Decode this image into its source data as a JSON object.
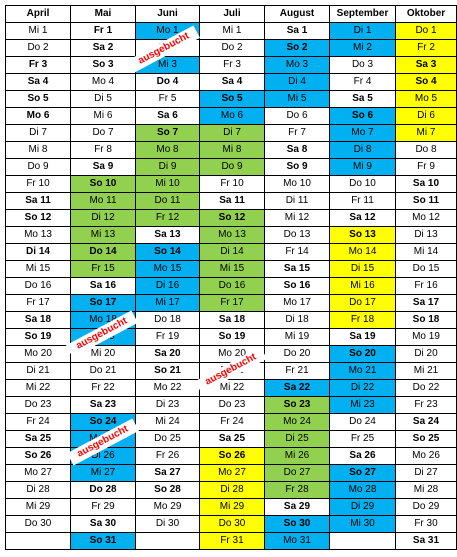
{
  "months": [
    "April",
    "Mai",
    "Juni",
    "Juli",
    "August",
    "September",
    "Oktober"
  ],
  "stamp_text": "ausgebucht",
  "colors": {
    "blue": "#00b0f0",
    "green": "#92d050",
    "yellow": "#ffff00"
  },
  "rows": [
    [
      [
        "Mi 1",
        "",
        0
      ],
      [
        "Fr 1",
        "",
        1
      ],
      [
        "Mo 1",
        "blue",
        0
      ],
      [
        "Mi 1",
        "",
        0
      ],
      [
        "Sa 1",
        "",
        1
      ],
      [
        "Di 1",
        "blue",
        0
      ],
      [
        "Do 1",
        "yellow",
        0
      ]
    ],
    [
      [
        "Do 2",
        "",
        0
      ],
      [
        "Sa 2",
        "",
        1
      ],
      [
        "Di 2",
        "",
        0
      ],
      [
        "Do 2",
        "",
        0
      ],
      [
        "So 2",
        "blue",
        1
      ],
      [
        "Mi 2",
        "blue",
        0
      ],
      [
        "Fr 2",
        "yellow",
        0
      ]
    ],
    [
      [
        "Fr 3",
        "",
        1
      ],
      [
        "So 3",
        "",
        1
      ],
      [
        "Mi 3",
        "blue",
        0
      ],
      [
        "Fr 3",
        "",
        0
      ],
      [
        "Mo 3",
        "blue",
        0
      ],
      [
        "Do 3",
        "",
        0
      ],
      [
        "Sa 3",
        "yellow",
        1
      ]
    ],
    [
      [
        "Sa 4",
        "",
        1
      ],
      [
        "Mo 4",
        "",
        0
      ],
      [
        "Do 4",
        "",
        1
      ],
      [
        "Sa 4",
        "",
        1
      ],
      [
        "Di 4",
        "blue",
        0
      ],
      [
        "Fr 4",
        "",
        0
      ],
      [
        "So 4",
        "yellow",
        1
      ]
    ],
    [
      [
        "So 5",
        "",
        1
      ],
      [
        "Di 5",
        "",
        0
      ],
      [
        "Fr 5",
        "",
        0
      ],
      [
        "So 5",
        "blue",
        1
      ],
      [
        "Mi 5",
        "blue",
        0
      ],
      [
        "Sa 5",
        "",
        1
      ],
      [
        "Mo 5",
        "yellow",
        0
      ]
    ],
    [
      [
        "Mo 6",
        "",
        1
      ],
      [
        "Mi 6",
        "",
        0
      ],
      [
        "Sa 6",
        "",
        1
      ],
      [
        "Mo 6",
        "blue",
        0
      ],
      [
        "Do 6",
        "",
        0
      ],
      [
        "So 6",
        "blue",
        1
      ],
      [
        "Di 6",
        "yellow",
        0
      ]
    ],
    [
      [
        "Di 7",
        "",
        0
      ],
      [
        "Do 7",
        "",
        0
      ],
      [
        "So 7",
        "green",
        1
      ],
      [
        "Di 7",
        "green",
        0
      ],
      [
        "Fr 7",
        "",
        0
      ],
      [
        "Mo 7",
        "blue",
        0
      ],
      [
        "Mi 7",
        "yellow",
        0
      ]
    ],
    [
      [
        "Mi 8",
        "",
        0
      ],
      [
        "Fr 8",
        "",
        0
      ],
      [
        "Mo 8",
        "green",
        0
      ],
      [
        "Mi 8",
        "green",
        0
      ],
      [
        "Sa 8",
        "",
        1
      ],
      [
        "Di 8",
        "blue",
        0
      ],
      [
        "Do 8",
        "",
        0
      ]
    ],
    [
      [
        "Do 9",
        "",
        0
      ],
      [
        "Sa 9",
        "",
        1
      ],
      [
        "Di 9",
        "green",
        0
      ],
      [
        "Do 9",
        "green",
        0
      ],
      [
        "So 9",
        "",
        1
      ],
      [
        "Mi 9",
        "blue",
        0
      ],
      [
        "Fr 9",
        "",
        0
      ]
    ],
    [
      [
        "Fr 10",
        "",
        0
      ],
      [
        "So 10",
        "green",
        1
      ],
      [
        "Mi 10",
        "green",
        0
      ],
      [
        "Fr 10",
        "",
        0
      ],
      [
        "Mo 10",
        "",
        0
      ],
      [
        "Do 10",
        "",
        0
      ],
      [
        "Sa 10",
        "",
        1
      ]
    ],
    [
      [
        "Sa 11",
        "",
        1
      ],
      [
        "Mo 11",
        "green",
        0
      ],
      [
        "Do 11",
        "green",
        0
      ],
      [
        "Sa 11",
        "",
        1
      ],
      [
        "Di 11",
        "",
        0
      ],
      [
        "Fr 11",
        "",
        0
      ],
      [
        "So 11",
        "",
        1
      ]
    ],
    [
      [
        "So 12",
        "",
        1
      ],
      [
        "Di 12",
        "green",
        0
      ],
      [
        "Fr 12",
        "green",
        0
      ],
      [
        "So 12",
        "green",
        1
      ],
      [
        "Mi 12",
        "",
        0
      ],
      [
        "Sa 12",
        "",
        1
      ],
      [
        "Mo 12",
        "",
        0
      ]
    ],
    [
      [
        "Mo 13",
        "",
        0
      ],
      [
        "Mi 13",
        "green",
        0
      ],
      [
        "Sa 13",
        "",
        1
      ],
      [
        "Mo 13",
        "green",
        0
      ],
      [
        "Do 13",
        "",
        0
      ],
      [
        "So 13",
        "yellow",
        1
      ],
      [
        "Di 13",
        "",
        0
      ]
    ],
    [
      [
        "Di 14",
        "",
        1
      ],
      [
        "Do 14",
        "green",
        1
      ],
      [
        "So 14",
        "blue",
        1
      ],
      [
        "Di 14",
        "green",
        0
      ],
      [
        "Fr 14",
        "",
        0
      ],
      [
        "Mo 14",
        "yellow",
        0
      ],
      [
        "Mi 14",
        "",
        0
      ]
    ],
    [
      [
        "Mi 15",
        "",
        0
      ],
      [
        "Fr 15",
        "green",
        0
      ],
      [
        "Mo 15",
        "blue",
        0
      ],
      [
        "Mi 15",
        "green",
        0
      ],
      [
        "Sa 15",
        "",
        1
      ],
      [
        "Di 15",
        "yellow",
        0
      ],
      [
        "Do 15",
        "",
        0
      ]
    ],
    [
      [
        "Do 16",
        "",
        0
      ],
      [
        "Sa 16",
        "",
        1
      ],
      [
        "Di 16",
        "blue",
        0
      ],
      [
        "Do 16",
        "green",
        0
      ],
      [
        "So 16",
        "",
        1
      ],
      [
        "Mi 16",
        "yellow",
        0
      ],
      [
        "Fr 16",
        "",
        0
      ]
    ],
    [
      [
        "Fr 17",
        "",
        0
      ],
      [
        "So 17",
        "blue",
        1
      ],
      [
        "Mi 17",
        "blue",
        0
      ],
      [
        "Fr 17",
        "green",
        0
      ],
      [
        "Mo 17",
        "",
        0
      ],
      [
        "Do 17",
        "yellow",
        0
      ],
      [
        "Sa 17",
        "",
        1
      ]
    ],
    [
      [
        "Sa 18",
        "",
        1
      ],
      [
        "Mo 18",
        "blue",
        0
      ],
      [
        "Do 18",
        "",
        0
      ],
      [
        "Sa 18",
        "",
        1
      ],
      [
        "Di 18",
        "",
        0
      ],
      [
        "Fr 18",
        "yellow",
        0
      ],
      [
        "So 18",
        "",
        1
      ]
    ],
    [
      [
        "So 19",
        "",
        1
      ],
      [
        "Di 19",
        "blue",
        0
      ],
      [
        "Fr 19",
        "",
        0
      ],
      [
        "So 19",
        "",
        1
      ],
      [
        "Mi 19",
        "",
        0
      ],
      [
        "Sa 19",
        "",
        1
      ],
      [
        "Mo 19",
        "",
        0
      ]
    ],
    [
      [
        "Mo 20",
        "",
        0
      ],
      [
        "Mi 20",
        "",
        0
      ],
      [
        "Sa 20",
        "",
        1
      ],
      [
        "Mo 20",
        "",
        0
      ],
      [
        "Do 20",
        "",
        0
      ],
      [
        "So 20",
        "blue",
        1
      ],
      [
        "Di 20",
        "",
        0
      ]
    ],
    [
      [
        "Di 21",
        "",
        0
      ],
      [
        "Do 21",
        "",
        0
      ],
      [
        "So 21",
        "",
        1
      ],
      [
        "Di 21",
        "",
        0
      ],
      [
        "Fr 21",
        "",
        0
      ],
      [
        "Mo 21",
        "blue",
        0
      ],
      [
        "Mi 21",
        "",
        0
      ]
    ],
    [
      [
        "Mi 22",
        "",
        0
      ],
      [
        "Fr 22",
        "",
        0
      ],
      [
        "Mo 22",
        "",
        0
      ],
      [
        "Mi 22",
        "",
        0
      ],
      [
        "Sa 22",
        "blue",
        1
      ],
      [
        "Di 22",
        "blue",
        0
      ],
      [
        "Do 22",
        "",
        0
      ]
    ],
    [
      [
        "Do 23",
        "",
        0
      ],
      [
        "Sa 23",
        "",
        1
      ],
      [
        "Di 23",
        "",
        0
      ],
      [
        "Do 23",
        "",
        0
      ],
      [
        "So 23",
        "green",
        1
      ],
      [
        "Mi 23",
        "blue",
        0
      ],
      [
        "Fr 23",
        "",
        0
      ]
    ],
    [
      [
        "Fr 24",
        "",
        0
      ],
      [
        "So 24",
        "blue",
        1
      ],
      [
        "Mi 24",
        "",
        0
      ],
      [
        "Fr 24",
        "",
        0
      ],
      [
        "Mo 24",
        "green",
        0
      ],
      [
        "Do 24",
        "",
        0
      ],
      [
        "Sa 24",
        "",
        1
      ]
    ],
    [
      [
        "Sa 25",
        "",
        1
      ],
      [
        "Mo 25",
        "blue",
        0
      ],
      [
        "Do 25",
        "",
        0
      ],
      [
        "Sa 25",
        "",
        1
      ],
      [
        "Di 25",
        "green",
        0
      ],
      [
        "Fr 25",
        "",
        0
      ],
      [
        "So 25",
        "",
        1
      ]
    ],
    [
      [
        "So 26",
        "",
        1
      ],
      [
        "Di 26",
        "blue",
        0
      ],
      [
        "Fr 26",
        "",
        0
      ],
      [
        "So 26",
        "yellow",
        1
      ],
      [
        "Mi 26",
        "green",
        0
      ],
      [
        "Sa 26",
        "",
        1
      ],
      [
        "Mo 26",
        "",
        0
      ]
    ],
    [
      [
        "Mo 27",
        "",
        0
      ],
      [
        "Mi 27",
        "blue",
        0
      ],
      [
        "Sa 27",
        "",
        1
      ],
      [
        "Mo 27",
        "yellow",
        0
      ],
      [
        "Do 27",
        "green",
        0
      ],
      [
        "So 27",
        "blue",
        1
      ],
      [
        "Di 27",
        "",
        0
      ]
    ],
    [
      [
        "Di 28",
        "",
        0
      ],
      [
        "Do 28",
        "",
        1
      ],
      [
        "So 28",
        "",
        1
      ],
      [
        "Di 28",
        "yellow",
        0
      ],
      [
        "Fr 28",
        "green",
        0
      ],
      [
        "Mo 28",
        "blue",
        0
      ],
      [
        "Mi 28",
        "",
        0
      ]
    ],
    [
      [
        "Mi 29",
        "",
        0
      ],
      [
        "Fr 29",
        "",
        0
      ],
      [
        "Mo 29",
        "",
        0
      ],
      [
        "Mi 29",
        "yellow",
        0
      ],
      [
        "Sa 29",
        "",
        1
      ],
      [
        "Di 29",
        "blue",
        0
      ],
      [
        "Do 29",
        "",
        0
      ]
    ],
    [
      [
        "Do 30",
        "",
        0
      ],
      [
        "Sa 30",
        "",
        1
      ],
      [
        "Di 30",
        "",
        0
      ],
      [
        "Do 30",
        "yellow",
        0
      ],
      [
        "So 30",
        "blue",
        1
      ],
      [
        "Mi 30",
        "blue",
        0
      ],
      [
        "Fr 30",
        "",
        0
      ]
    ],
    [
      [
        "",
        "",
        0
      ],
      [
        "So 31",
        "blue",
        1
      ],
      [
        "",
        "",
        0
      ],
      [
        "Fr 31",
        "yellow",
        0
      ],
      [
        "Mo 31",
        "blue",
        0
      ],
      [
        "",
        "",
        0
      ],
      [
        "Sa 31",
        "",
        1
      ]
    ]
  ]
}
